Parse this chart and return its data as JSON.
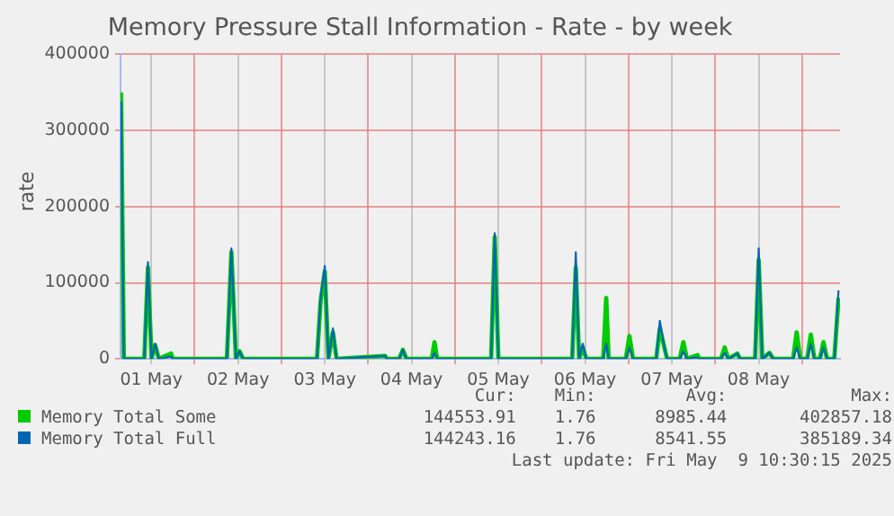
{
  "chart_data": {
    "type": "line",
    "title": "Memory Pressure Stall Information - Rate - by week",
    "ylabel": "rate",
    "x": [
      "2025-05-01T03:40",
      "2025-05-01T04:25",
      "2025-05-01T10:05",
      "2025-05-01T11:05",
      "2025-05-01T12:05",
      "2025-05-01T13:05",
      "2025-05-01T14:05",
      "2025-05-01T17:30",
      "2025-05-01T18:00",
      "2025-05-02T08:55",
      "2025-05-02T10:10",
      "2025-05-02T11:25",
      "2025-05-02T12:25",
      "2025-05-02T13:25",
      "2025-05-03T09:50",
      "2025-05-03T10:50",
      "2025-05-03T12:00",
      "2025-05-03T13:00",
      "2025-05-03T14:15",
      "2025-05-03T15:15",
      "2025-05-04T04:40",
      "2025-05-04T05:10",
      "2025-05-04T08:35",
      "2025-05-04T09:35",
      "2025-05-04T10:35",
      "2025-05-04T17:35",
      "2025-05-04T18:20",
      "2025-05-04T19:05",
      "2025-05-05T10:00",
      "2025-05-05T11:00",
      "2025-05-05T12:00",
      "2025-05-06T08:25",
      "2025-05-06T09:25",
      "2025-05-06T10:20",
      "2025-05-06T11:20",
      "2025-05-06T12:20",
      "2025-05-06T17:00",
      "2025-05-06T17:50",
      "2025-05-06T18:30",
      "2025-05-06T23:15",
      "2025-05-07T00:15",
      "2025-05-07T01:15",
      "2025-05-07T07:40",
      "2025-05-07T08:40",
      "2025-05-07T09:55",
      "2025-05-07T10:40",
      "2025-05-07T14:10",
      "2025-05-07T15:10",
      "2025-05-07T16:10",
      "2025-05-07T19:05",
      "2025-05-07T19:35",
      "2025-05-08T01:35",
      "2025-05-08T02:35",
      "2025-05-08T03:35",
      "2025-05-08T06:05",
      "2025-05-08T06:50",
      "2025-05-08T11:00",
      "2025-05-08T12:00",
      "2025-05-08T13:00",
      "2025-05-08T15:00",
      "2025-05-08T16:00",
      "2025-05-08T21:30",
      "2025-05-08T22:30",
      "2025-05-08T23:30",
      "2025-05-09T01:25",
      "2025-05-09T02:25",
      "2025-05-09T03:25",
      "2025-05-09T04:55",
      "2025-05-09T05:55",
      "2025-05-09T06:55",
      "2025-05-09T08:55",
      "2025-05-09T10:05"
    ],
    "series": [
      {
        "name": "Memory Total Some",
        "color": "#00cc00",
        "values": [
          350000,
          0,
          0,
          120000,
          0,
          18000,
          0,
          7000,
          0,
          0,
          140000,
          0,
          10000,
          0,
          0,
          75000,
          115000,
          0,
          35000,
          0,
          4000,
          0,
          0,
          12000,
          0,
          0,
          22000,
          0,
          0,
          160000,
          0,
          0,
          120000,
          0,
          15000,
          0,
          0,
          80000,
          0,
          0,
          30000,
          0,
          0,
          40000,
          15000,
          0,
          0,
          22000,
          0,
          5000,
          0,
          0,
          15000,
          0,
          7000,
          0,
          0,
          130000,
          0,
          8000,
          0,
          0,
          35000,
          0,
          0,
          32000,
          0,
          0,
          22000,
          0,
          0,
          80000
        ]
      },
      {
        "name": "Memory Total Full",
        "color": "#0066b3",
        "values": [
          338000,
          0,
          0,
          127000,
          0,
          20000,
          0,
          3000,
          0,
          0,
          145000,
          0,
          10000,
          0,
          0,
          80000,
          122000,
          0,
          40000,
          0,
          4000,
          0,
          0,
          12000,
          0,
          0,
          8000,
          0,
          0,
          165000,
          0,
          0,
          140000,
          0,
          20000,
          0,
          0,
          20000,
          0,
          0,
          15000,
          0,
          0,
          50000,
          15000,
          0,
          0,
          10000,
          0,
          2000,
          0,
          0,
          8000,
          0,
          7000,
          0,
          0,
          145000,
          0,
          8000,
          0,
          0,
          15000,
          0,
          0,
          20000,
          0,
          0,
          15000,
          0,
          0,
          90000
        ]
      }
    ],
    "xlim": [
      "2025-05-01T03:30",
      "2025-05-09T10:30"
    ],
    "xticks": [
      {
        "value": "2025-05-01T12:00",
        "label": "01 May"
      },
      {
        "value": "2025-05-02T00:00",
        "label": null
      },
      {
        "value": "2025-05-02T12:00",
        "label": "02 May"
      },
      {
        "value": "2025-05-03T00:00",
        "label": null
      },
      {
        "value": "2025-05-03T12:00",
        "label": "03 May"
      },
      {
        "value": "2025-05-04T00:00",
        "label": null
      },
      {
        "value": "2025-05-04T12:00",
        "label": "04 May"
      },
      {
        "value": "2025-05-05T00:00",
        "label": null
      },
      {
        "value": "2025-05-05T12:00",
        "label": "05 May"
      },
      {
        "value": "2025-05-06T00:00",
        "label": null
      },
      {
        "value": "2025-05-06T12:00",
        "label": "06 May"
      },
      {
        "value": "2025-05-07T00:00",
        "label": null
      },
      {
        "value": "2025-05-07T12:00",
        "label": "07 May"
      },
      {
        "value": "2025-05-08T00:00",
        "label": null
      },
      {
        "value": "2025-05-08T12:00",
        "label": "08 May"
      },
      {
        "value": "2025-05-09T00:00",
        "label": null
      }
    ],
    "ylim": [
      0,
      400000
    ],
    "yticks": [
      0,
      100000,
      200000,
      300000,
      400000
    ],
    "grid": true,
    "legend": "bottom",
    "marker": "none",
    "line_style": "solid",
    "annotations": [
      "Cur:",
      "Min:",
      "Avg:",
      "Max:",
      "144553.91",
      "1.76",
      "8985.44",
      "402857.18",
      "144243.16",
      "1.76",
      "8541.55",
      "385189.34",
      "Last update: Fri May  9 10:30:15 2025"
    ]
  }
}
